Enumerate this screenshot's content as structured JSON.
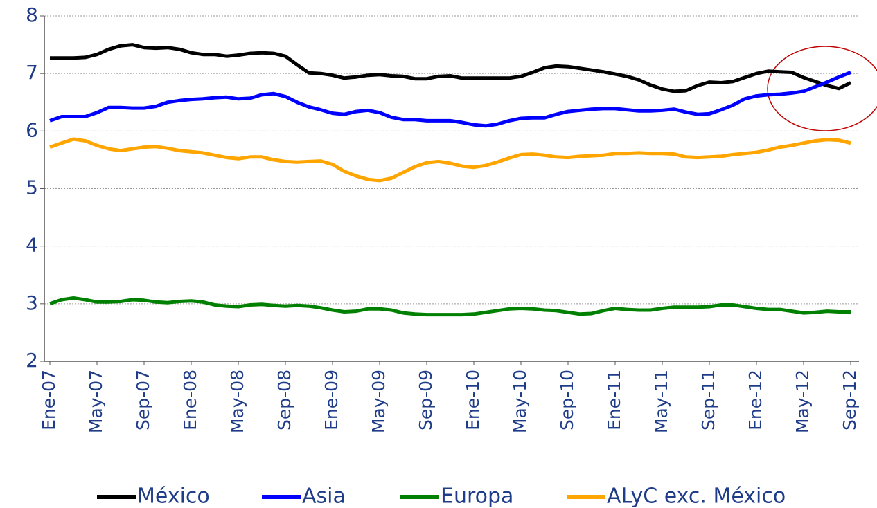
{
  "chart_data": {
    "type": "line",
    "categories": [
      "Ene-07",
      null,
      null,
      null,
      "May-07",
      null,
      null,
      null,
      "Sep-07",
      null,
      null,
      null,
      "Ene-08",
      null,
      null,
      null,
      "May-08",
      null,
      null,
      null,
      "Sep-08",
      null,
      null,
      null,
      "Ene-09",
      null,
      null,
      null,
      "May-09",
      null,
      null,
      null,
      "Sep-09",
      null,
      null,
      null,
      "Ene-10",
      null,
      null,
      null,
      "May-10",
      null,
      null,
      null,
      "Sep-10",
      null,
      null,
      null,
      "Ene-11",
      null,
      null,
      null,
      "May-11",
      null,
      null,
      null,
      "Sep-11",
      null,
      null,
      null,
      "Ene-12",
      null,
      null,
      null,
      "May-12",
      null,
      null,
      null,
      "Sep-12"
    ],
    "series": [
      {
        "name": "México",
        "color": "#000000",
        "values": [
          7.27,
          7.27,
          7.27,
          7.28,
          7.33,
          7.42,
          7.48,
          7.5,
          7.45,
          7.44,
          7.45,
          7.42,
          7.36,
          7.33,
          7.33,
          7.3,
          7.32,
          7.35,
          7.36,
          7.35,
          7.3,
          7.15,
          7.01,
          7.0,
          6.97,
          6.92,
          6.94,
          6.97,
          6.98,
          6.96,
          6.95,
          6.91,
          6.91,
          6.95,
          6.96,
          6.92,
          6.92,
          6.92,
          6.92,
          6.92,
          6.95,
          7.02,
          7.1,
          7.13,
          7.12,
          7.09,
          7.06,
          7.03,
          6.99,
          6.95,
          6.89,
          6.8,
          6.73,
          6.69,
          6.7,
          6.79,
          6.85,
          6.84,
          6.86,
          6.93,
          7.0,
          7.04,
          7.03,
          7.02,
          6.93,
          6.86,
          6.79,
          6.74,
          6.84
        ]
      },
      {
        "name": "Asia",
        "color": "#0000ff",
        "values": [
          6.18,
          6.25,
          6.25,
          6.25,
          6.32,
          6.41,
          6.41,
          6.4,
          6.4,
          6.43,
          6.5,
          6.53,
          6.55,
          6.56,
          6.58,
          6.59,
          6.56,
          6.57,
          6.63,
          6.65,
          6.6,
          6.5,
          6.42,
          6.37,
          6.31,
          6.29,
          6.34,
          6.36,
          6.32,
          6.24,
          6.2,
          6.2,
          6.18,
          6.18,
          6.18,
          6.15,
          6.11,
          6.09,
          6.12,
          6.18,
          6.22,
          6.23,
          6.23,
          6.29,
          6.34,
          6.36,
          6.38,
          6.39,
          6.39,
          6.37,
          6.35,
          6.35,
          6.36,
          6.38,
          6.33,
          6.29,
          6.3,
          6.37,
          6.45,
          6.56,
          6.61,
          6.63,
          6.64,
          6.66,
          6.69,
          6.77,
          6.85,
          6.94,
          7.02
        ]
      },
      {
        "name": "Europa",
        "color": "#008000",
        "values": [
          3.0,
          3.07,
          3.1,
          3.07,
          3.03,
          3.03,
          3.04,
          3.07,
          3.06,
          3.03,
          3.02,
          3.04,
          3.05,
          3.03,
          2.98,
          2.96,
          2.95,
          2.98,
          2.99,
          2.97,
          2.96,
          2.97,
          2.96,
          2.93,
          2.89,
          2.86,
          2.87,
          2.91,
          2.91,
          2.89,
          2.84,
          2.82,
          2.81,
          2.81,
          2.81,
          2.81,
          2.82,
          2.85,
          2.88,
          2.91,
          2.92,
          2.91,
          2.89,
          2.88,
          2.85,
          2.82,
          2.83,
          2.88,
          2.92,
          2.9,
          2.89,
          2.89,
          2.92,
          2.94,
          2.94,
          2.94,
          2.95,
          2.98,
          2.98,
          2.95,
          2.92,
          2.9,
          2.9,
          2.87,
          2.84,
          2.85,
          2.87,
          2.86,
          2.86
        ]
      },
      {
        "name": "ALyC exc. México",
        "color": "#ffa500",
        "values": [
          5.72,
          5.79,
          5.86,
          5.83,
          5.75,
          5.69,
          5.66,
          5.69,
          5.72,
          5.73,
          5.7,
          5.66,
          5.64,
          5.62,
          5.58,
          5.54,
          5.52,
          5.55,
          5.55,
          5.5,
          5.47,
          5.46,
          5.47,
          5.48,
          5.42,
          5.3,
          5.22,
          5.16,
          5.14,
          5.18,
          5.28,
          5.38,
          5.45,
          5.47,
          5.44,
          5.39,
          5.37,
          5.4,
          5.46,
          5.53,
          5.59,
          5.6,
          5.58,
          5.55,
          5.54,
          5.56,
          5.57,
          5.58,
          5.61,
          5.61,
          5.62,
          5.61,
          5.61,
          5.6,
          5.55,
          5.54,
          5.55,
          5.56,
          5.59,
          5.61,
          5.63,
          5.67,
          5.72,
          5.75,
          5.79,
          5.83,
          5.85,
          5.84,
          5.79
        ]
      }
    ],
    "ylim": [
      2,
      8
    ],
    "yticks": [
      2,
      3,
      4,
      5,
      6,
      7,
      8
    ],
    "grid": true,
    "legend": "bottom"
  }
}
